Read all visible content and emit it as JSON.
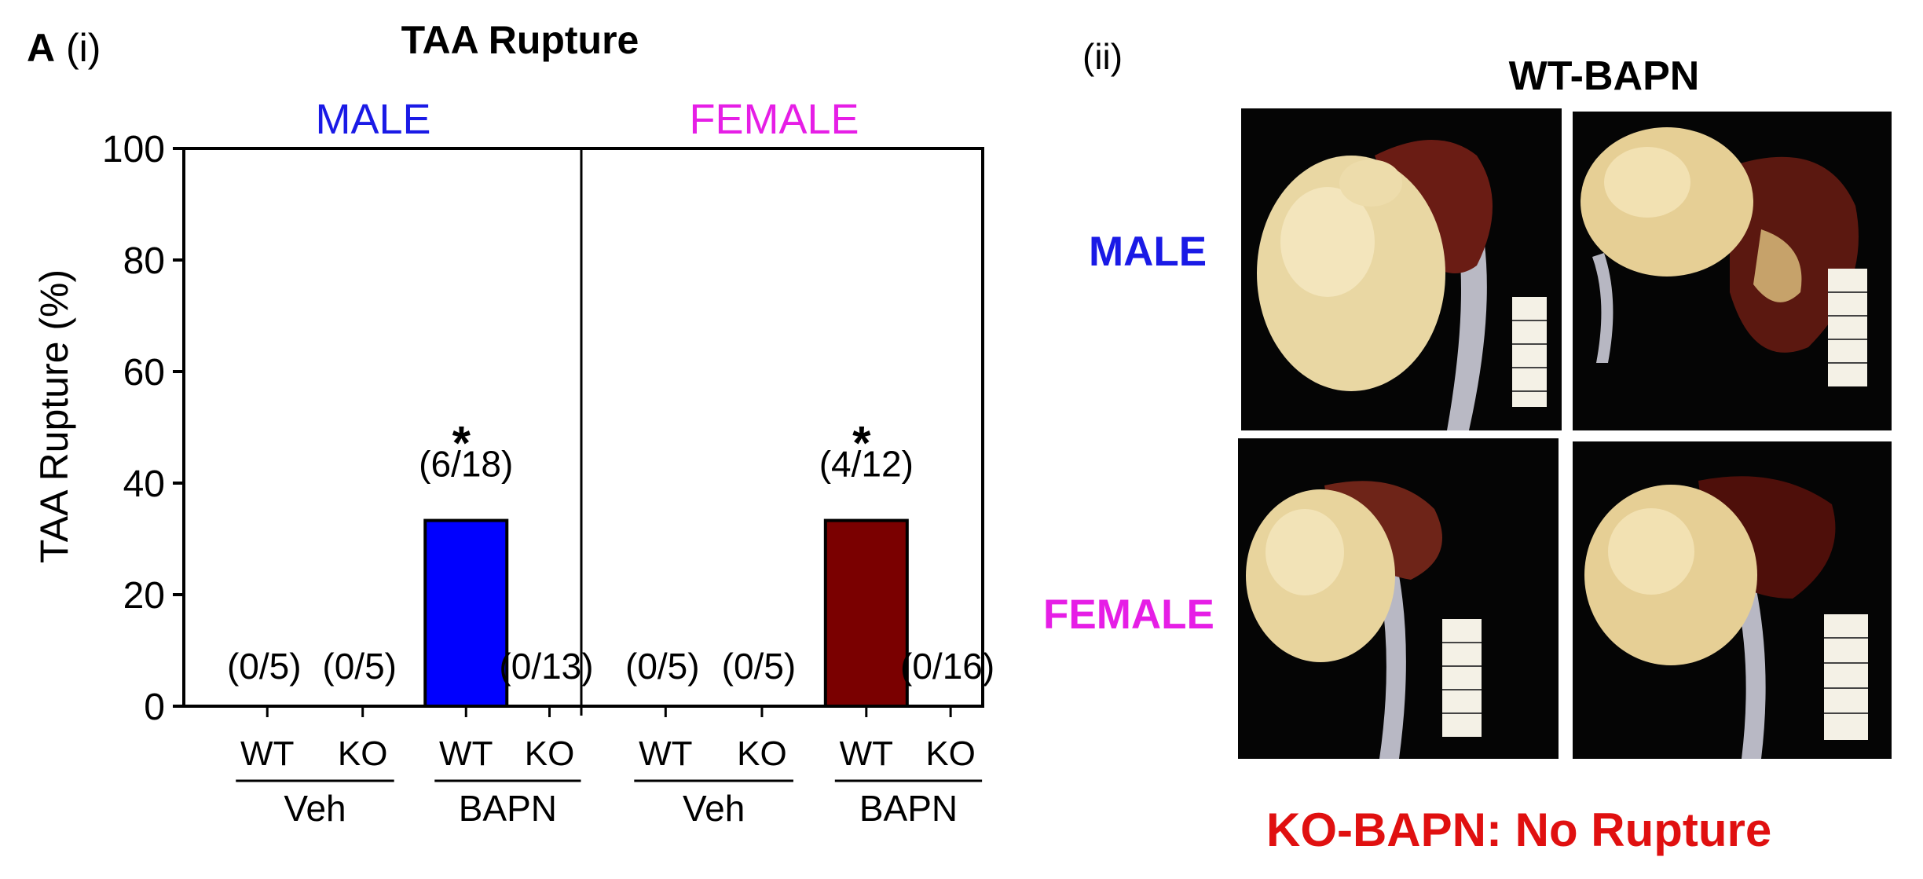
{
  "panel_i": {
    "letter": "A",
    "label": "(i)"
  },
  "panel_ii": {
    "label": "(ii)",
    "title": "WT-BAPN",
    "row_labels": [
      {
        "text": "MALE",
        "color": "#1a1ae6"
      },
      {
        "text": "FEMALE",
        "color": "#e61ee6"
      }
    ],
    "footer": "KO-BAPN: No Rupture",
    "footer_color": "#e01010"
  },
  "chart_data": {
    "type": "bar",
    "title": "TAA Rupture",
    "ylabel": "TAA Rupture (%)",
    "ylim": [
      0,
      100
    ],
    "yticks": [
      0,
      20,
      40,
      60,
      80,
      100
    ],
    "panels": [
      {
        "name": "MALE",
        "color": "#1a1ae6",
        "bar_color": "#0000ff",
        "categories": [
          "WT",
          "KO",
          "WT",
          "KO"
        ],
        "groups": [
          {
            "label": "Veh",
            "members": [
              0,
              1
            ]
          },
          {
            "label": "BAPN",
            "members": [
              2,
              3
            ]
          }
        ],
        "values": [
          0,
          0,
          33.3,
          0
        ],
        "counts": [
          "(0/5)",
          "(0/5)",
          "(6/18)",
          "(0/13)"
        ],
        "significance": [
          "",
          "",
          "*",
          ""
        ]
      },
      {
        "name": "FEMALE",
        "color": "#e61ee6",
        "bar_color": "#7a0000",
        "categories": [
          "WT",
          "KO",
          "WT",
          "KO"
        ],
        "groups": [
          {
            "label": "Veh",
            "members": [
              0,
              1
            ]
          },
          {
            "label": "BAPN",
            "members": [
              2,
              3
            ]
          }
        ],
        "values": [
          0,
          0,
          33.3,
          0
        ],
        "counts": [
          "(0/5)",
          "(0/5)",
          "(4/12)",
          "(0/16)"
        ],
        "significance": [
          "",
          "",
          "*",
          ""
        ]
      }
    ]
  }
}
